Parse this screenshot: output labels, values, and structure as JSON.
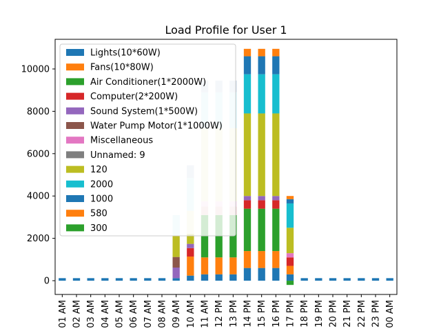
{
  "chart_data": {
    "type": "bar",
    "stacked": true,
    "title": "Load Profile for User 1",
    "xlabel": "",
    "ylabel": "",
    "ylim": [
      -650,
      11400
    ],
    "yticks": [
      0,
      2000,
      4000,
      6000,
      8000,
      10000
    ],
    "categories": [
      "01 AM",
      "02 AM",
      "03 AM",
      "04 AM",
      "05 AM",
      "06 AM",
      "07 AM",
      "08 AM",
      "09 AM",
      "10 AM",
      "11 AM",
      "12 PM",
      "13 PM",
      "14 PM",
      "15 PM",
      "16 PM",
      "17 PM",
      "18 PM",
      "19 PM",
      "20 PM",
      "21 PM",
      "22 PM",
      "23 PM",
      "00 AM"
    ],
    "legend_position": "upper-left",
    "series": [
      {
        "name": "Lights(10*60W)",
        "color": "#1f77b4",
        "values": [
          120,
          120,
          120,
          120,
          120,
          120,
          120,
          120,
          120,
          240,
          300,
          300,
          300,
          600,
          600,
          600,
          300,
          120,
          120,
          120,
          120,
          120,
          120,
          120
        ]
      },
      {
        "name": "Fans(10*80W)",
        "color": "#ff7f0e",
        "values": [
          0,
          0,
          0,
          0,
          0,
          0,
          0,
          0,
          0,
          900,
          800,
          800,
          800,
          800,
          800,
          800,
          400,
          0,
          0,
          0,
          0,
          0,
          0,
          0
        ]
      },
      {
        "name": "Air Conditioner(1*2000W)",
        "color": "#2ca02c",
        "values": [
          0,
          0,
          0,
          0,
          0,
          0,
          0,
          0,
          0,
          0,
          2000,
          2000,
          2000,
          2000,
          2000,
          2000,
          -200,
          0,
          0,
          0,
          0,
          0,
          0,
          0
        ]
      },
      {
        "name": "Computer(2*200W)",
        "color": "#d62728",
        "values": [
          0,
          0,
          0,
          0,
          0,
          0,
          0,
          0,
          0,
          400,
          0,
          0,
          0,
          400,
          400,
          400,
          400,
          0,
          0,
          0,
          0,
          0,
          0,
          0
        ]
      },
      {
        "name": "Sound System(1*500W)",
        "color": "#9467bd",
        "values": [
          0,
          0,
          0,
          0,
          0,
          0,
          0,
          0,
          500,
          200,
          0,
          0,
          0,
          200,
          200,
          200,
          0,
          0,
          0,
          0,
          0,
          0,
          0,
          0
        ]
      },
      {
        "name": "Water Pump Motor(1*1000W)",
        "color": "#8c564b",
        "values": [
          0,
          0,
          0,
          0,
          0,
          0,
          0,
          0,
          500,
          0,
          0,
          0,
          0,
          0,
          0,
          0,
          0,
          0,
          0,
          0,
          0,
          0,
          0,
          0
        ]
      },
      {
        "name": "Miscellaneous",
        "color": "#e377c2",
        "values": [
          0,
          0,
          0,
          0,
          0,
          0,
          0,
          0,
          0,
          0,
          0,
          0,
          0,
          0,
          0,
          0,
          200,
          0,
          0,
          0,
          0,
          0,
          0,
          0
        ]
      },
      {
        "name": "Unnamed: 9",
        "color": "#7f7f7f",
        "values": [
          0,
          0,
          0,
          0,
          0,
          0,
          0,
          0,
          0,
          0,
          0,
          0,
          0,
          0,
          0,
          0,
          0,
          0,
          0,
          0,
          0,
          0,
          0,
          0
        ]
      },
      {
        "name": "120",
        "color": "#bcbd22",
        "values": [
          0,
          0,
          0,
          0,
          0,
          0,
          0,
          0,
          1000,
          500,
          0,
          0,
          0,
          3900,
          3900,
          3900,
          1200,
          0,
          0,
          0,
          0,
          0,
          0,
          0
        ]
      },
      {
        "name": "2000",
        "color": "#17becf",
        "values": [
          0,
          0,
          0,
          0,
          0,
          0,
          0,
          0,
          0,
          0,
          0,
          0,
          0,
          1850,
          1850,
          1850,
          1150,
          0,
          0,
          0,
          0,
          0,
          0,
          0
        ]
      },
      {
        "name": "1000",
        "color": "#1f77b4",
        "values": [
          0,
          0,
          0,
          0,
          0,
          0,
          0,
          0,
          0,
          0,
          0,
          0,
          0,
          850,
          850,
          850,
          200,
          0,
          0,
          0,
          0,
          0,
          0,
          0
        ]
      },
      {
        "name": "580",
        "color": "#ff7f0e",
        "values": [
          0,
          0,
          0,
          0,
          0,
          0,
          0,
          0,
          0,
          0,
          0,
          0,
          0,
          350,
          350,
          350,
          150,
          0,
          0,
          0,
          0,
          0,
          0,
          0
        ]
      },
      {
        "name": "300",
        "color": "#2ca02c",
        "values": [
          0,
          0,
          0,
          0,
          0,
          0,
          0,
          0,
          0,
          0,
          0,
          0,
          0,
          0,
          0,
          0,
          0,
          0,
          0,
          0,
          0,
          0,
          0,
          0
        ]
      }
    ],
    "covered_bars": [
      {
        "category": "09 AM",
        "segments": [
          {
            "from": 2150,
            "to": 3100,
            "color": "#cdeff5"
          }
        ]
      },
      {
        "category": "10 AM",
        "segments": [
          {
            "from": 2200,
            "to": 3300,
            "color": "#f0f0cc"
          },
          {
            "from": 3300,
            "to": 4850,
            "color": "#cdeff5"
          },
          {
            "from": 4850,
            "to": 5450,
            "color": "#c7d6e6"
          }
        ]
      },
      {
        "category": "11 AM",
        "segments": [
          {
            "from": 3100,
            "to": 3500,
            "color": "#e8c8c8"
          },
          {
            "from": 3500,
            "to": 3750,
            "color": "#f5d6ea"
          },
          {
            "from": 3750,
            "to": 7200,
            "color": "#f0f0cc"
          },
          {
            "from": 7200,
            "to": 8900,
            "color": "#cdeff5"
          },
          {
            "from": 8900,
            "to": 9450,
            "color": "#c7d6e6"
          }
        ]
      },
      {
        "category": "12 PM",
        "segments": [
          {
            "from": 3100,
            "to": 3500,
            "color": "#e8c8c8"
          },
          {
            "from": 3500,
            "to": 3750,
            "color": "#f5d6ea"
          },
          {
            "from": 3750,
            "to": 7200,
            "color": "#f0f0cc"
          },
          {
            "from": 7200,
            "to": 8900,
            "color": "#cdeff5"
          },
          {
            "from": 8900,
            "to": 9450,
            "color": "#c7d6e6"
          }
        ]
      },
      {
        "category": "13 PM",
        "segments": [
          {
            "from": 3100,
            "to": 3500,
            "color": "#e8c8c8"
          },
          {
            "from": 3500,
            "to": 3750,
            "color": "#f5d6ea"
          },
          {
            "from": 3750,
            "to": 7200,
            "color": "#f0f0cc"
          },
          {
            "from": 7200,
            "to": 8900,
            "color": "#cdeff5"
          },
          {
            "from": 8900,
            "to": 9450,
            "color": "#c7d6e6"
          }
        ]
      }
    ]
  }
}
